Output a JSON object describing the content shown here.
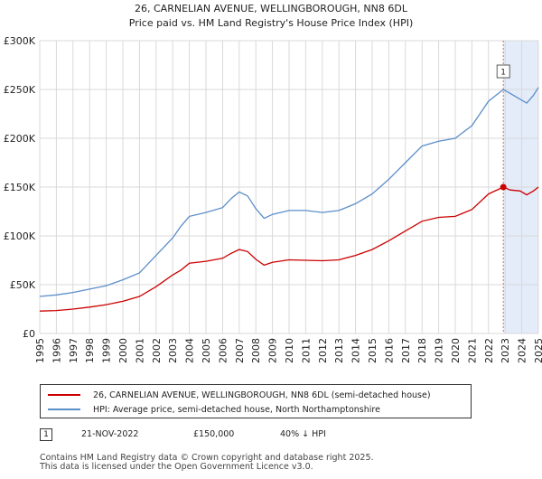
{
  "chart_data": {
    "type": "line",
    "title": "26, CARNELIAN AVENUE, WELLINGBOROUGH, NN8 6DL",
    "subtitle": "Price paid vs. HM Land Registry's House Price Index (HPI)",
    "xlabel": "",
    "ylabel": "",
    "x_range": [
      1995,
      2025
    ],
    "ylim": [
      0,
      300000
    ],
    "grid": true,
    "y_ticks": [
      {
        "value": 0,
        "label": "£0"
      },
      {
        "value": 50000,
        "label": "£50K"
      },
      {
        "value": 100000,
        "label": "£100K"
      },
      {
        "value": 150000,
        "label": "£150K"
      },
      {
        "value": 200000,
        "label": "£200K"
      },
      {
        "value": 250000,
        "label": "£250K"
      },
      {
        "value": 300000,
        "label": "£300K"
      }
    ],
    "x_ticks": [
      "1995",
      "1996",
      "1997",
      "1998",
      "1999",
      "2000",
      "2001",
      "2002",
      "2003",
      "2004",
      "2005",
      "2006",
      "2007",
      "2008",
      "2009",
      "2010",
      "2011",
      "2012",
      "2013",
      "2014",
      "2015",
      "2016",
      "2017",
      "2018",
      "2019",
      "2020",
      "2021",
      "2022",
      "2023",
      "2024",
      "2025"
    ],
    "highlight_span": [
      2022.89,
      2025
    ],
    "series": [
      {
        "name": "26, CARNELIAN AVENUE, WELLINGBOROUGH, NN8 6DL (semi-detached house)",
        "color": "#cc0000",
        "points": [
          [
            1995,
            23000
          ],
          [
            1996,
            23500
          ],
          [
            1997,
            25000
          ],
          [
            1998,
            27000
          ],
          [
            1999,
            29500
          ],
          [
            2000,
            33000
          ],
          [
            2001,
            38000
          ],
          [
            2002,
            48000
          ],
          [
            2003,
            60000
          ],
          [
            2003.5,
            65000
          ],
          [
            2004,
            72000
          ],
          [
            2005,
            74000
          ],
          [
            2006,
            77000
          ],
          [
            2006.5,
            82000
          ],
          [
            2007,
            86000
          ],
          [
            2007.5,
            84000
          ],
          [
            2008,
            76000
          ],
          [
            2008.5,
            70000
          ],
          [
            2009,
            73000
          ],
          [
            2010,
            75500
          ],
          [
            2011,
            75000
          ],
          [
            2012,
            74500
          ],
          [
            2013,
            75500
          ],
          [
            2014,
            80000
          ],
          [
            2015,
            86000
          ],
          [
            2016,
            95000
          ],
          [
            2017,
            105000
          ],
          [
            2018,
            115000
          ],
          [
            2019,
            119000
          ],
          [
            2020,
            120000
          ],
          [
            2021,
            127000
          ],
          [
            2022,
            143000
          ],
          [
            2022.89,
            150000
          ],
          [
            2023.3,
            147000
          ],
          [
            2023.9,
            146000
          ],
          [
            2024.3,
            142000
          ],
          [
            2024.7,
            146000
          ],
          [
            2025,
            150000
          ]
        ]
      },
      {
        "name": "HPI: Average price, semi-detached house, North Northamptonshire",
        "color": "#5b8ec9",
        "points": [
          [
            1995,
            38000
          ],
          [
            1996,
            39500
          ],
          [
            1997,
            42000
          ],
          [
            1998,
            45500
          ],
          [
            1999,
            49000
          ],
          [
            2000,
            55000
          ],
          [
            2001,
            62000
          ],
          [
            2002,
            80000
          ],
          [
            2003,
            98000
          ],
          [
            2003.5,
            110000
          ],
          [
            2004,
            120000
          ],
          [
            2005,
            124000
          ],
          [
            2006,
            129000
          ],
          [
            2006.5,
            138000
          ],
          [
            2007,
            145000
          ],
          [
            2007.5,
            141000
          ],
          [
            2008,
            128000
          ],
          [
            2008.5,
            118000
          ],
          [
            2009,
            122000
          ],
          [
            2010,
            126000
          ],
          [
            2011,
            126000
          ],
          [
            2012,
            124000
          ],
          [
            2013,
            126000
          ],
          [
            2014,
            133000
          ],
          [
            2015,
            143000
          ],
          [
            2016,
            158000
          ],
          [
            2017,
            175000
          ],
          [
            2018,
            192000
          ],
          [
            2019,
            197000
          ],
          [
            2020,
            200000
          ],
          [
            2021,
            213000
          ],
          [
            2022,
            238000
          ],
          [
            2022.89,
            250000
          ],
          [
            2023.3,
            246000
          ],
          [
            2023.9,
            240000
          ],
          [
            2024.3,
            236000
          ],
          [
            2024.7,
            244000
          ],
          [
            2025,
            252000
          ]
        ]
      }
    ],
    "annotations": [
      {
        "label": "1",
        "x": 2022.89,
        "y": 150000
      }
    ]
  },
  "legend": {
    "items": [
      {
        "label": "26, CARNELIAN AVENUE, WELLINGBOROUGH, NN8 6DL (semi-detached house)",
        "color": "#cc0000"
      },
      {
        "label": "HPI: Average price, semi-detached house, North Northamptonshire",
        "color": "#5b8ec9"
      }
    ]
  },
  "sale": {
    "number": "1",
    "date": "21-NOV-2022",
    "price": "£150,000",
    "delta": "40% ↓ HPI"
  },
  "footer": {
    "line1": "Contains HM Land Registry data © Crown copyright and database right 2025.",
    "line2": "This data is licensed under the Open Government Licence v3.0."
  }
}
